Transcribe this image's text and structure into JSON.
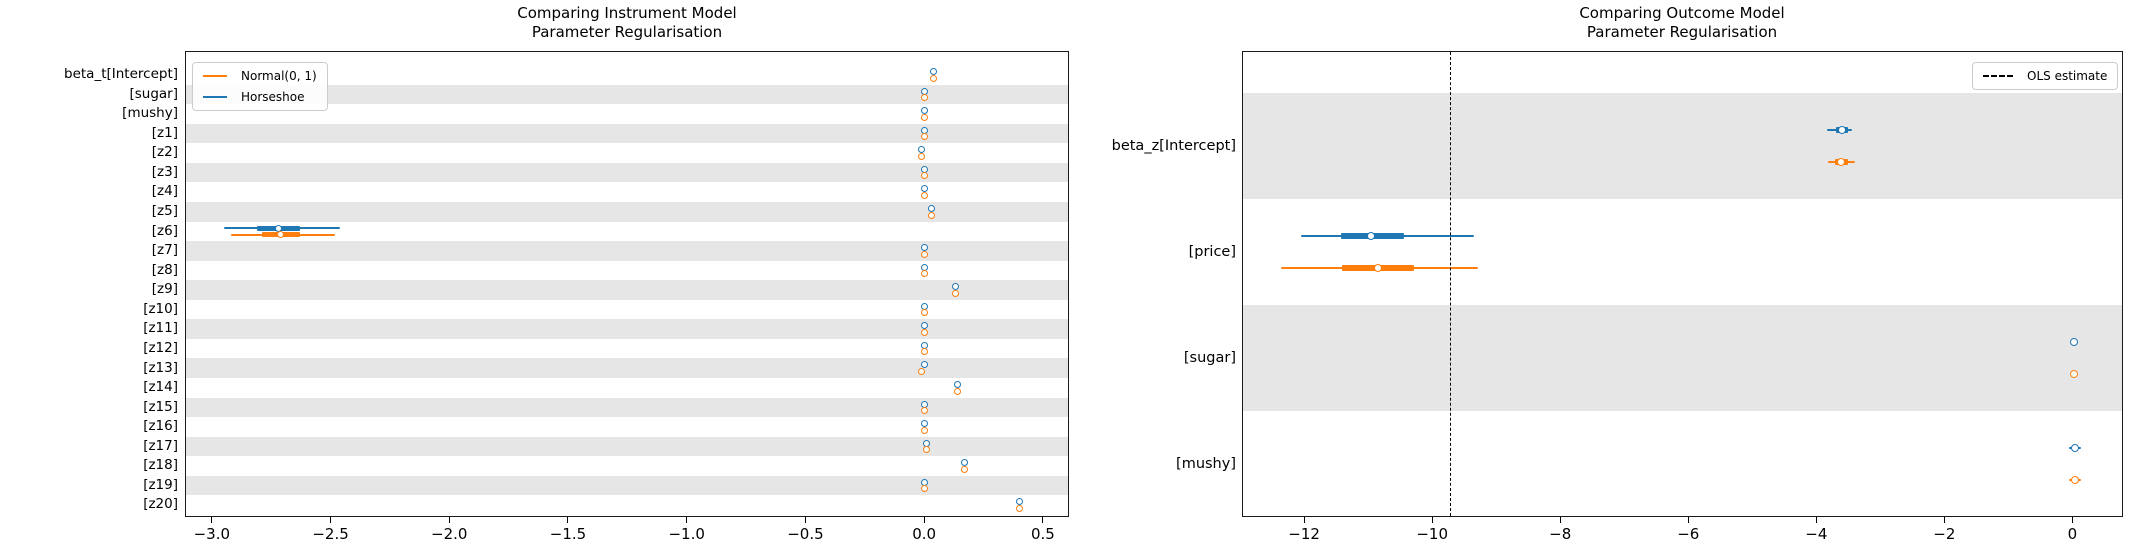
{
  "colors": {
    "horseshoe": "#1f77b4",
    "normal": "#ff7f0e",
    "band": "#e6e6e6",
    "ols_line": "#000000"
  },
  "chart_data": [
    {
      "type": "forest",
      "panel": "instrument-model",
      "title_line1": "Comparing Instrument Model",
      "title_line2": "Parameter Regularisation",
      "xlim": [
        -3.113,
        0.61
      ],
      "grid": false,
      "legend_position": "upper-left",
      "legend": [
        {
          "label": "Normal(0, 1)",
          "color": "#ff7f0e"
        },
        {
          "label": "Horseshoe",
          "color": "#1f77b4"
        }
      ],
      "xticks": [
        {
          "v": -3.0,
          "label": "−3.0"
        },
        {
          "v": -2.5,
          "label": "−2.5"
        },
        {
          "v": -2.0,
          "label": "−2.0"
        },
        {
          "v": -1.5,
          "label": "−1.5"
        },
        {
          "v": -1.0,
          "label": "−1.0"
        },
        {
          "v": -0.5,
          "label": "−0.5"
        },
        {
          "v": 0.0,
          "label": "0.0"
        },
        {
          "v": 0.5,
          "label": "0.5"
        }
      ],
      "rows": [
        {
          "label": "beta_t[Intercept]",
          "shaded": false,
          "horseshoe": {
            "m": 0.04
          },
          "normal": {
            "m": 0.04
          }
        },
        {
          "label": "[sugar]",
          "shaded": true,
          "horseshoe": {
            "m": 0.0
          },
          "normal": {
            "m": 0.0
          }
        },
        {
          "label": "[mushy]",
          "shaded": false,
          "horseshoe": {
            "m": 0.0
          },
          "normal": {
            "m": 0.0
          }
        },
        {
          "label": "[z1]",
          "shaded": true,
          "horseshoe": {
            "m": 0.0
          },
          "normal": {
            "m": 0.0
          }
        },
        {
          "label": "[z2]",
          "shaded": false,
          "horseshoe": {
            "m": -0.01
          },
          "normal": {
            "m": -0.01
          }
        },
        {
          "label": "[z3]",
          "shaded": true,
          "horseshoe": {
            "m": 0.0
          },
          "normal": {
            "m": 0.0
          }
        },
        {
          "label": "[z4]",
          "shaded": false,
          "horseshoe": {
            "m": 0.0
          },
          "normal": {
            "m": 0.0
          }
        },
        {
          "label": "[z5]",
          "shaded": true,
          "horseshoe": {
            "m": 0.03
          },
          "normal": {
            "m": 0.03
          }
        },
        {
          "label": "[z6]",
          "shaded": false,
          "horseshoe": {
            "m": -2.72,
            "thick": [
              -2.81,
              -2.63
            ],
            "thin": [
              -2.95,
              -2.46
            ]
          },
          "normal": {
            "m": -2.71,
            "thick": [
              -2.79,
              -2.63
            ],
            "thin": [
              -2.92,
              -2.48
            ]
          }
        },
        {
          "label": "[z7]",
          "shaded": true,
          "horseshoe": {
            "m": 0.0
          },
          "normal": {
            "m": 0.0
          }
        },
        {
          "label": "[z8]",
          "shaded": false,
          "horseshoe": {
            "m": 0.0
          },
          "normal": {
            "m": 0.0
          }
        },
        {
          "label": "[z9]",
          "shaded": true,
          "horseshoe": {
            "m": 0.13
          },
          "normal": {
            "m": 0.13
          }
        },
        {
          "label": "[z10]",
          "shaded": false,
          "horseshoe": {
            "m": 0.0
          },
          "normal": {
            "m": 0.0
          }
        },
        {
          "label": "[z11]",
          "shaded": true,
          "horseshoe": {
            "m": 0.0
          },
          "normal": {
            "m": 0.0
          }
        },
        {
          "label": "[z12]",
          "shaded": false,
          "horseshoe": {
            "m": 0.0
          },
          "normal": {
            "m": 0.0
          }
        },
        {
          "label": "[z13]",
          "shaded": true,
          "horseshoe": {
            "m": 0.0
          },
          "normal": {
            "m": -0.01
          }
        },
        {
          "label": "[z14]",
          "shaded": false,
          "horseshoe": {
            "m": 0.14
          },
          "normal": {
            "m": 0.14
          }
        },
        {
          "label": "[z15]",
          "shaded": true,
          "horseshoe": {
            "m": 0.0
          },
          "normal": {
            "m": 0.0
          }
        },
        {
          "label": "[z16]",
          "shaded": false,
          "horseshoe": {
            "m": 0.0
          },
          "normal": {
            "m": 0.0
          }
        },
        {
          "label": "[z17]",
          "shaded": true,
          "horseshoe": {
            "m": 0.01
          },
          "normal": {
            "m": 0.01
          }
        },
        {
          "label": "[z18]",
          "shaded": false,
          "horseshoe": {
            "m": 0.17
          },
          "normal": {
            "m": 0.17
          }
        },
        {
          "label": "[z19]",
          "shaded": true,
          "horseshoe": {
            "m": 0.0
          },
          "normal": {
            "m": 0.0
          }
        },
        {
          "label": "[z20]",
          "shaded": false,
          "horseshoe": {
            "m": 0.4
          },
          "normal": {
            "m": 0.4
          }
        }
      ]
    },
    {
      "type": "forest",
      "panel": "outcome-model",
      "title_line1": "Comparing Outcome Model",
      "title_line2": "Parameter Regularisation",
      "xlim": [
        -12.97,
        0.79
      ],
      "grid": false,
      "legend_position": "upper-right",
      "legend": [
        {
          "label": "OLS estimate",
          "style": "dashed",
          "color": "#000000"
        }
      ],
      "ols_estimate": -9.7,
      "xticks": [
        {
          "v": -12,
          "label": "−12"
        },
        {
          "v": -10,
          "label": "−10"
        },
        {
          "v": -8,
          "label": "−8"
        },
        {
          "v": -6,
          "label": "−6"
        },
        {
          "v": -4,
          "label": "−4"
        },
        {
          "v": -2,
          "label": "−2"
        },
        {
          "v": 0,
          "label": "0"
        }
      ],
      "rows": [
        {
          "label": "beta_z[Intercept]",
          "shaded": true,
          "horseshoe": {
            "m": -3.6,
            "thick": [
              -3.7,
              -3.5
            ],
            "thin": [
              -3.83,
              -3.44
            ]
          },
          "normal": {
            "m": -3.61,
            "thick": [
              -3.71,
              -3.5
            ],
            "thin": [
              -3.81,
              -3.39
            ]
          }
        },
        {
          "label": "[price]",
          "shaded": false,
          "horseshoe": {
            "m": -10.95,
            "thick": [
              -11.42,
              -10.44
            ],
            "thin": [
              -12.05,
              -9.34
            ]
          },
          "normal": {
            "m": -10.85,
            "thick": [
              -11.41,
              -10.28
            ],
            "thin": [
              -12.36,
              -9.29
            ]
          }
        },
        {
          "label": "[sugar]",
          "shaded": true,
          "horseshoe": {
            "m": 0.03
          },
          "normal": {
            "m": 0.03
          }
        },
        {
          "label": "[mushy]",
          "shaded": false,
          "horseshoe": {
            "m": 0.04,
            "thin": [
              -0.05,
              0.13
            ]
          },
          "normal": {
            "m": 0.04,
            "thin": [
              -0.05,
              0.13
            ]
          }
        }
      ]
    }
  ]
}
